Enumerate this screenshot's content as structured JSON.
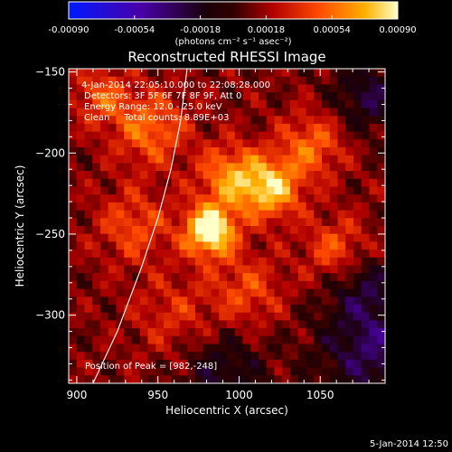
{
  "chart_data": {
    "type": "heatmap",
    "title": "Reconstructed RHESSI Image",
    "xlabel": "Heliocentric X (arcsec)",
    "ylabel": "Heliocentric Y (arcsec)",
    "xlim": [
      895,
      1090
    ],
    "ylim": [
      -342,
      -148
    ],
    "xticks": [
      900,
      950,
      1000,
      1050
    ],
    "yticks": [
      -150,
      -200,
      -250,
      -300
    ],
    "colorbar": {
      "min": -0.0009,
      "max": 0.0009,
      "colormap": "blue-black-red-yellow-white",
      "tick_values": [
        -0.0009,
        -0.00054,
        -0.00018,
        0.00018,
        0.00054,
        0.0009
      ],
      "tick_labels": [
        "-0.00090",
        "-0.00054",
        "-0.00018",
        "0.00018",
        "0.00054",
        "0.00090"
      ],
      "unit_label": "(photons cm⁻² s⁻¹ asec⁻²)"
    },
    "info_lines": [
      "4-Jan-2014 22:05:10.000 to 22:08:28.000",
      "Detectors: 3F 5F 6F 7F 8F 9F, Att 0",
      "Energy Range: 12.0 - 25.0 keV",
      "Clean     Total counts: 8.89E+03"
    ],
    "peak_label": "Position of Peak = [982,-248]",
    "peak": {
      "x": 982,
      "y": -248,
      "value": 0.0009
    },
    "sources": [
      {
        "x": 982,
        "y": -248,
        "peak": 0.00088,
        "sigma": 11
      },
      {
        "x": 1020,
        "y": -222,
        "peak": 0.00062,
        "sigma": 13
      },
      {
        "x": 995,
        "y": -215,
        "peak": 0.0005,
        "sigma": 14
      },
      {
        "x": 945,
        "y": -185,
        "peak": 0.00042,
        "sigma": 16
      },
      {
        "x": 1045,
        "y": -195,
        "peak": 0.0004,
        "sigma": 14
      },
      {
        "x": 1060,
        "y": -260,
        "peak": 0.00036,
        "sigma": 14
      },
      {
        "x": 935,
        "y": -245,
        "peak": 0.00032,
        "sigma": 16
      },
      {
        "x": 1005,
        "y": -285,
        "peak": 0.0003,
        "sigma": 16
      },
      {
        "x": 960,
        "y": -300,
        "peak": 0.00022,
        "sigma": 18
      },
      {
        "x": 915,
        "y": -165,
        "peak": 0.00034,
        "sigma": 12
      }
    ],
    "negative_regions": [
      {
        "x": 1080,
        "y": -165,
        "peak": -0.00035,
        "sigma": 16
      },
      {
        "x": 1085,
        "y": -320,
        "peak": -0.00045,
        "sigma": 25
      },
      {
        "x": 990,
        "y": -335,
        "peak": -0.0003,
        "sigma": 18
      },
      {
        "x": 1075,
        "y": -280,
        "peak": -0.00025,
        "sigma": 14
      }
    ],
    "limb_curve": {
      "x": [
        910,
        925,
        940,
        950,
        958,
        964,
        968
      ],
      "y": [
        -342,
        -310,
        -270,
        -240,
        -210,
        -180,
        -148
      ]
    }
  },
  "timestamp": "5-Jan-2014 12:50"
}
